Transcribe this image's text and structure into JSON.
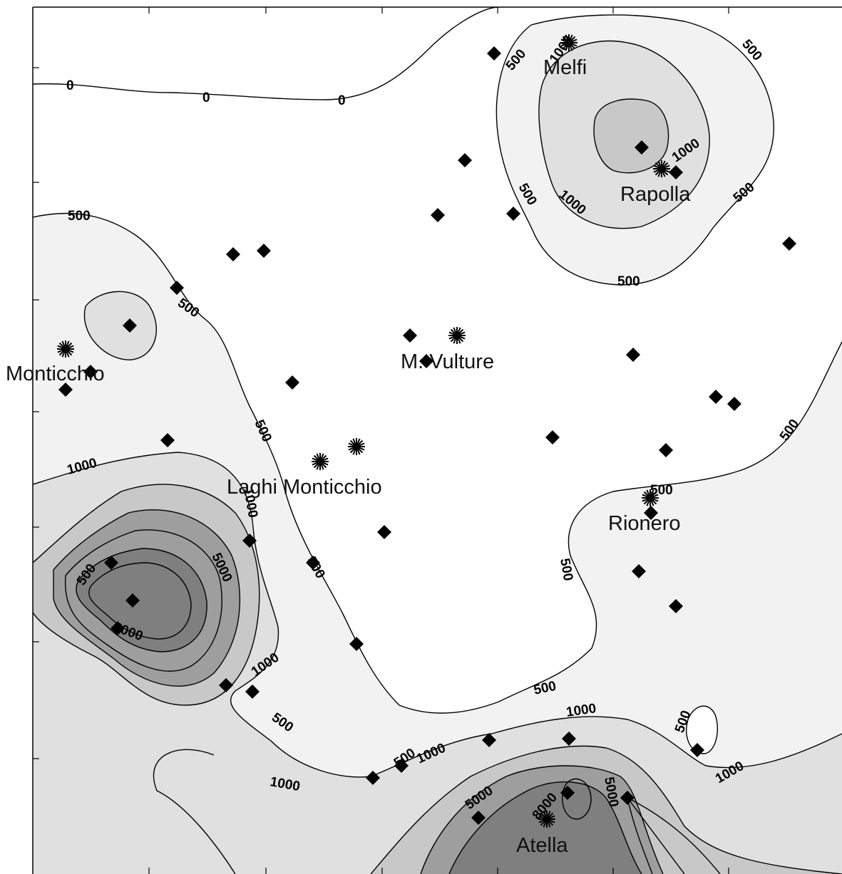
{
  "colors": {
    "background": "#ffffff",
    "level_500": "#f2f2f2",
    "level_1000": "#e0e0e0",
    "level_mid": "#c8c8c8",
    "level_high": "#9e9e9e",
    "level_peak": "#7f7f7f",
    "contour_line": "#000000",
    "marker": "#000000"
  },
  "icons": {
    "sample_point": "diamond-icon",
    "town": "asterisk-star-icon"
  },
  "places": [
    {
      "id": "melfi",
      "name": "Melfi"
    },
    {
      "id": "rapolla",
      "name": "Rapolla"
    },
    {
      "id": "monticchio",
      "name": "Monticchio"
    },
    {
      "id": "m-vulture",
      "name": "M. Vulture"
    },
    {
      "id": "laghi-monticchio",
      "name": "Laghi Monticchio"
    },
    {
      "id": "rionero",
      "name": "Rionero"
    },
    {
      "id": "atella",
      "name": "Atella"
    }
  ],
  "contour_labels": [
    "0",
    "500",
    "1000",
    "5000",
    "8000"
  ]
}
